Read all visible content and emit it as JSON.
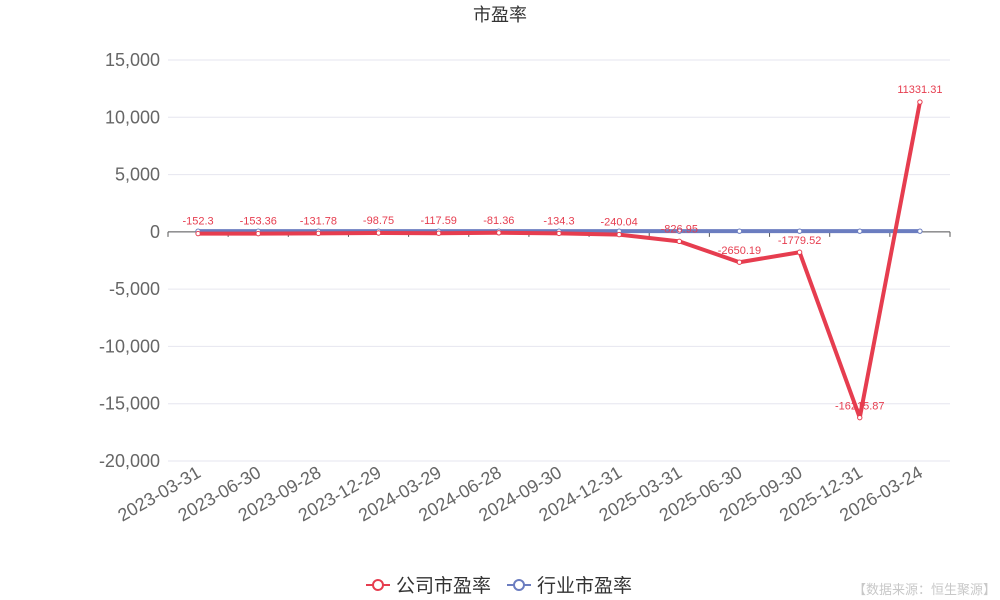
{
  "chart_data": {
    "type": "line",
    "title": "市盈率",
    "categories": [
      "2023-03-31",
      "2023-06-30",
      "2023-09-28",
      "2023-12-29",
      "2024-03-29",
      "2024-06-28",
      "2024-09-30",
      "2024-12-31",
      "2025-03-31",
      "2025-06-30",
      "2025-09-30",
      "2025-12-31",
      "2026-03-24"
    ],
    "yticks": [
      "15,000",
      "10,000",
      "5,000",
      "0",
      "-5,000",
      "-10,000",
      "-15,000",
      "-20,000"
    ],
    "ylim": [
      -20000,
      15000
    ],
    "grid": true,
    "legend_position": "bottom",
    "series": [
      {
        "name": "公司市盈率",
        "color": "#e63d4f",
        "values": [
          -152.3,
          -153.36,
          -131.78,
          -98.75,
          -117.59,
          -81.36,
          -134.3,
          -240.04,
          -826.95,
          -2650.19,
          -1779.52,
          -16215.87,
          11331.31
        ],
        "labels": [
          "-152.3",
          "-153.36",
          "-131.78",
          "-98.75",
          "-117.59",
          "-81.36",
          "-134.3",
          "-240.04",
          "-826.95",
          "-2650.19",
          "-1779.52",
          "-16215.87",
          "11331.31"
        ]
      },
      {
        "name": "行业市盈率",
        "color": "#6b7dc0",
        "values": [
          60,
          60,
          60,
          60,
          60,
          60,
          60,
          60,
          60,
          60,
          60,
          60,
          60
        ]
      }
    ]
  },
  "source_note": "【数据来源：恒生聚源】"
}
